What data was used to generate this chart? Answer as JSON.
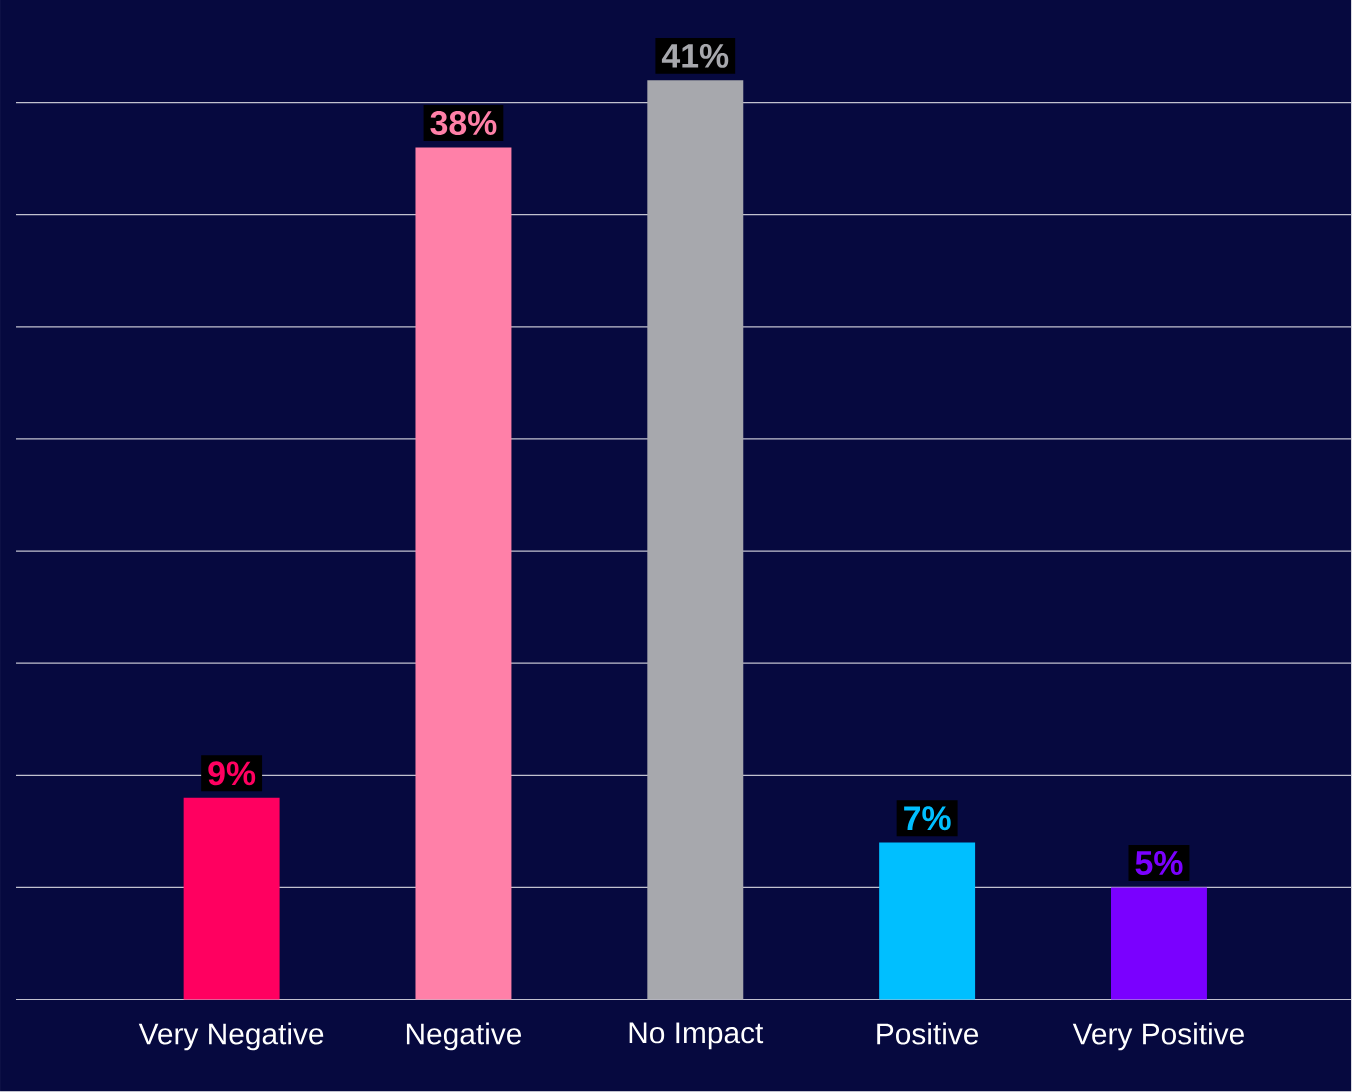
{
  "chart_data": {
    "type": "bar",
    "categories": [
      "Very Negative",
      "Negative",
      "No Impact",
      "Positive",
      "Very Positive"
    ],
    "values": [
      9,
      38,
      41,
      7,
      5
    ],
    "colors": [
      "#ff0060",
      "#ff80a8",
      "#a7a8ad",
      "#00bfff",
      "#7a00ff"
    ],
    "value_labels": [
      "9%",
      "38%",
      "41%",
      "7%",
      "5%"
    ],
    "relative": false,
    "yticks": [
      {
        "value": 0,
        "label": null
      },
      {
        "value": 5,
        "label": null
      },
      {
        "value": 10,
        "label": null
      },
      {
        "value": 15,
        "label": null
      },
      {
        "value": 20,
        "label": null
      },
      {
        "value": 25,
        "label": null
      },
      {
        "value": 30,
        "label": null
      },
      {
        "value": 35,
        "label": null
      },
      {
        "value": 40,
        "label": null
      }
    ],
    "grid": "y",
    "tick_labels": "x"
  }
}
